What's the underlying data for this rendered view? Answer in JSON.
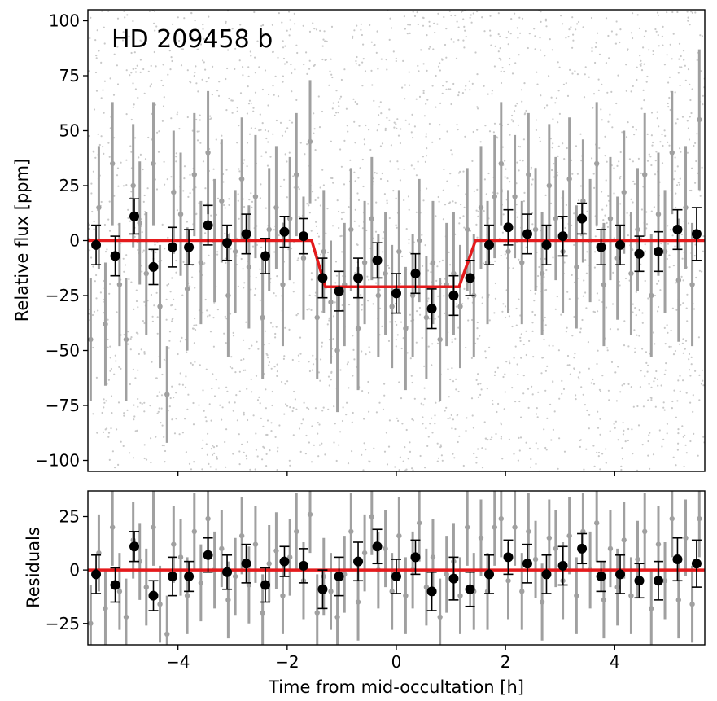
{
  "chart_data": [
    {
      "type": "scatter",
      "title": "HD 209458 b",
      "xlabel": "",
      "ylabel": "Relative flux [ppm]",
      "xlim": [
        -5.65,
        5.65
      ],
      "ylim": [
        -105,
        105
      ],
      "yticks": [
        100,
        75,
        50,
        25,
        0,
        -25,
        -50,
        -75,
        -100
      ],
      "ytick_labels": [
        "100",
        "75",
        "50",
        "25",
        "0",
        "−25",
        "−50",
        "−75",
        "−100"
      ],
      "xticks": [
        -4,
        -2,
        0,
        2,
        4
      ],
      "colors": {
        "raw": "#c8c8c8",
        "binned_error": "#a0a0a0",
        "binned_coarse": "#000000",
        "model": "#e41a1c"
      },
      "model": {
        "name": "occultation model",
        "x": [
          -5.65,
          -1.55,
          -1.3,
          1.15,
          1.45,
          5.65
        ],
        "y": [
          0,
          0,
          -21,
          -21,
          0,
          0
        ]
      },
      "coarse_binned": {
        "x": [
          -5.5,
          -5.15,
          -4.8,
          -4.45,
          -4.1,
          -3.8,
          -3.45,
          -3.1,
          -2.75,
          -2.4,
          -2.05,
          -1.7,
          -1.35,
          -1.05,
          -0.7,
          -0.35,
          0,
          0.35,
          0.65,
          1.05,
          1.35,
          1.7,
          2.05,
          2.4,
          2.75,
          3.05,
          3.4,
          3.75,
          4.1,
          4.45,
          4.8,
          5.15,
          5.5
        ],
        "y": [
          -2,
          -7,
          11,
          -12,
          -3,
          -3,
          7,
          -1,
          3,
          -7,
          4,
          2,
          -17,
          -23,
          -17,
          -9,
          -24,
          -15,
          -31,
          -25,
          -17,
          -2,
          6,
          3,
          -2,
          2,
          10,
          -3,
          -2,
          -6,
          -5,
          5,
          3
        ],
        "err": [
          9,
          9,
          8,
          8,
          9,
          8,
          9,
          8,
          9,
          8,
          7,
          8,
          9,
          9,
          9,
          8,
          9,
          9,
          9,
          9,
          8,
          9,
          8,
          9,
          9,
          9,
          7,
          8,
          9,
          8,
          9,
          9,
          12
        ]
      },
      "fine_binned": {
        "x": [
          -5.6,
          -5.45,
          -5.33,
          -5.2,
          -5.07,
          -4.95,
          -4.82,
          -4.7,
          -4.58,
          -4.45,
          -4.33,
          -4.2,
          -4.08,
          -3.95,
          -3.83,
          -3.7,
          -3.58,
          -3.45,
          -3.33,
          -3.2,
          -3.08,
          -2.95,
          -2.83,
          -2.7,
          -2.58,
          -2.45,
          -2.33,
          -2.2,
          -2.08,
          -1.95,
          -1.83,
          -1.7,
          -1.58,
          -1.45,
          -1.33,
          -1.2,
          -1.08,
          -0.95,
          -0.83,
          -0.7,
          -0.58,
          -0.45,
          -0.33,
          -0.2,
          -0.08,
          0.05,
          0.17,
          0.3,
          0.42,
          0.55,
          0.67,
          0.8,
          0.92,
          1.05,
          1.17,
          1.3,
          1.42,
          1.55,
          1.67,
          1.8,
          1.92,
          2.05,
          2.17,
          2.3,
          2.42,
          2.55,
          2.67,
          2.8,
          2.92,
          3.05,
          3.17,
          3.3,
          3.42,
          3.55,
          3.67,
          3.8,
          3.92,
          4.05,
          4.17,
          4.3,
          4.42,
          4.55,
          4.67,
          4.8,
          4.92,
          5.05,
          5.17,
          5.3,
          5.42,
          5.55
        ],
        "y": [
          -45,
          15,
          -38,
          35,
          -20,
          -45,
          25,
          8,
          -15,
          35,
          -30,
          -70,
          22,
          12,
          -22,
          30,
          -10,
          40,
          0,
          18,
          -25,
          -5,
          28,
          -12,
          20,
          -35,
          5,
          15,
          -20,
          10,
          30,
          -8,
          45,
          -35,
          -5,
          -28,
          -50,
          -20,
          5,
          -40,
          -10,
          10,
          -25,
          -15,
          -30,
          -5,
          -40,
          -25,
          0,
          -35,
          -10,
          -45,
          -20,
          -15,
          -30,
          5,
          -25,
          15,
          -10,
          20,
          35,
          -5,
          20,
          -10,
          30,
          5,
          -15,
          25,
          10,
          -5,
          28,
          -12,
          18,
          0,
          35,
          -20,
          10,
          -8,
          22,
          -15,
          5,
          30,
          -25,
          12,
          -5,
          40,
          -18,
          15,
          -20,
          55
        ],
        "err": [
          28,
          28,
          28,
          28,
          28,
          28,
          28,
          28,
          28,
          28,
          28,
          22,
          28,
          28,
          28,
          28,
          28,
          28,
          28,
          28,
          28,
          28,
          28,
          28,
          28,
          28,
          28,
          28,
          28,
          28,
          28,
          28,
          28,
          28,
          28,
          28,
          28,
          28,
          28,
          28,
          28,
          28,
          28,
          28,
          28,
          28,
          28,
          28,
          28,
          28,
          28,
          28,
          28,
          28,
          28,
          28,
          28,
          28,
          28,
          28,
          28,
          28,
          28,
          28,
          28,
          28,
          28,
          28,
          28,
          28,
          28,
          28,
          28,
          28,
          28,
          28,
          28,
          28,
          28,
          28,
          28,
          28,
          28,
          28,
          28,
          28,
          28,
          28,
          28,
          32
        ]
      }
    },
    {
      "type": "scatter",
      "title": "",
      "xlabel": "Time from mid-occultation [h]",
      "ylabel": "Residuals",
      "xlim": [
        -5.65,
        5.65
      ],
      "ylim": [
        -35,
        37
      ],
      "yticks": [
        25,
        0,
        -25
      ],
      "ytick_labels": [
        "25",
        "0",
        "−25"
      ],
      "xticks": [
        -4,
        -2,
        0,
        2,
        4
      ],
      "xtick_labels": [
        "−4",
        "−2",
        "0",
        "2",
        "4"
      ],
      "model": {
        "name": "zero line",
        "x": [
          -5.65,
          5.65
        ],
        "y": [
          0,
          0
        ]
      },
      "coarse_binned": {
        "x": [
          -5.5,
          -5.15,
          -4.8,
          -4.45,
          -4.1,
          -3.8,
          -3.45,
          -3.1,
          -2.75,
          -2.4,
          -2.05,
          -1.7,
          -1.35,
          -1.05,
          -0.7,
          -0.35,
          0,
          0.35,
          0.65,
          1.05,
          1.35,
          1.7,
          2.05,
          2.4,
          2.75,
          3.05,
          3.4,
          3.75,
          4.1,
          4.45,
          4.8,
          5.15,
          5.5
        ],
        "y": [
          -2,
          -7,
          11,
          -12,
          -3,
          -3,
          7,
          -1,
          3,
          -7,
          4,
          2,
          -9,
          -3,
          4,
          11,
          -3,
          6,
          -10,
          -4,
          -9,
          -2,
          6,
          3,
          -2,
          2,
          10,
          -3,
          -2,
          -5,
          -5,
          5,
          3
        ],
        "err": [
          9,
          8,
          7,
          7,
          9,
          7,
          8,
          8,
          9,
          8,
          7,
          8,
          9,
          9,
          9,
          8,
          8,
          8,
          9,
          10,
          8,
          9,
          8,
          9,
          9,
          9,
          7,
          7,
          9,
          8,
          9,
          10,
          11
        ]
      },
      "fine_binned": {
        "x": [
          -5.6,
          -5.45,
          -5.33,
          -5.2,
          -5.07,
          -4.95,
          -4.82,
          -4.7,
          -4.58,
          -4.45,
          -4.33,
          -4.2,
          -4.08,
          -3.95,
          -3.83,
          -3.7,
          -3.58,
          -3.45,
          -3.33,
          -3.2,
          -3.08,
          -2.95,
          -2.83,
          -2.7,
          -2.58,
          -2.45,
          -2.33,
          -2.2,
          -2.08,
          -1.95,
          -1.83,
          -1.7,
          -1.58,
          -1.45,
          -1.33,
          -1.2,
          -1.08,
          -0.95,
          -0.83,
          -0.7,
          -0.58,
          -0.45,
          -0.33,
          -0.2,
          -0.08,
          0.05,
          0.17,
          0.3,
          0.42,
          0.55,
          0.67,
          0.8,
          0.92,
          1.05,
          1.17,
          1.3,
          1.42,
          1.55,
          1.67,
          1.8,
          1.92,
          2.05,
          2.17,
          2.3,
          2.42,
          2.55,
          2.67,
          2.8,
          2.92,
          3.05,
          3.17,
          3.3,
          3.42,
          3.55,
          3.67,
          3.8,
          3.92,
          4.05,
          4.17,
          4.3,
          4.42,
          4.55,
          4.67,
          4.8,
          4.92,
          5.05,
          5.17,
          5.3,
          5.42,
          5.55
        ],
        "y": [
          -25,
          8,
          -18,
          20,
          -10,
          -22,
          14,
          4,
          -8,
          20,
          -16,
          -30,
          12,
          6,
          -12,
          18,
          -6,
          24,
          0,
          10,
          -14,
          -3,
          16,
          -7,
          12,
          -20,
          3,
          9,
          -12,
          6,
          18,
          -5,
          26,
          -20,
          -3,
          -10,
          -22,
          -2,
          18,
          -15,
          8,
          25,
          0,
          10,
          -10,
          16,
          -12,
          0,
          22,
          -8,
          6,
          -22,
          -2,
          4,
          -12,
          20,
          -10,
          15,
          -10,
          20,
          24,
          -5,
          20,
          -10,
          18,
          5,
          -15,
          15,
          10,
          -5,
          16,
          -12,
          18,
          0,
          22,
          -14,
          10,
          -8,
          14,
          -12,
          5,
          18,
          -18,
          12,
          -5,
          24,
          -14,
          15,
          -16,
          24
        ],
        "err": [
          18,
          18,
          18,
          18,
          18,
          18,
          18,
          18,
          18,
          18,
          18,
          18,
          18,
          18,
          18,
          18,
          18,
          18,
          18,
          18,
          18,
          18,
          18,
          18,
          18,
          18,
          18,
          18,
          18,
          18,
          18,
          18,
          18,
          18,
          18,
          18,
          18,
          18,
          18,
          18,
          18,
          18,
          18,
          18,
          18,
          18,
          18,
          18,
          18,
          18,
          18,
          18,
          18,
          18,
          18,
          18,
          18,
          18,
          18,
          18,
          18,
          18,
          18,
          18,
          18,
          18,
          18,
          18,
          18,
          18,
          18,
          18,
          18,
          18,
          18,
          18,
          18,
          18,
          18,
          18,
          18,
          18,
          18,
          18,
          18,
          18,
          18,
          18,
          18,
          18
        ]
      }
    }
  ]
}
